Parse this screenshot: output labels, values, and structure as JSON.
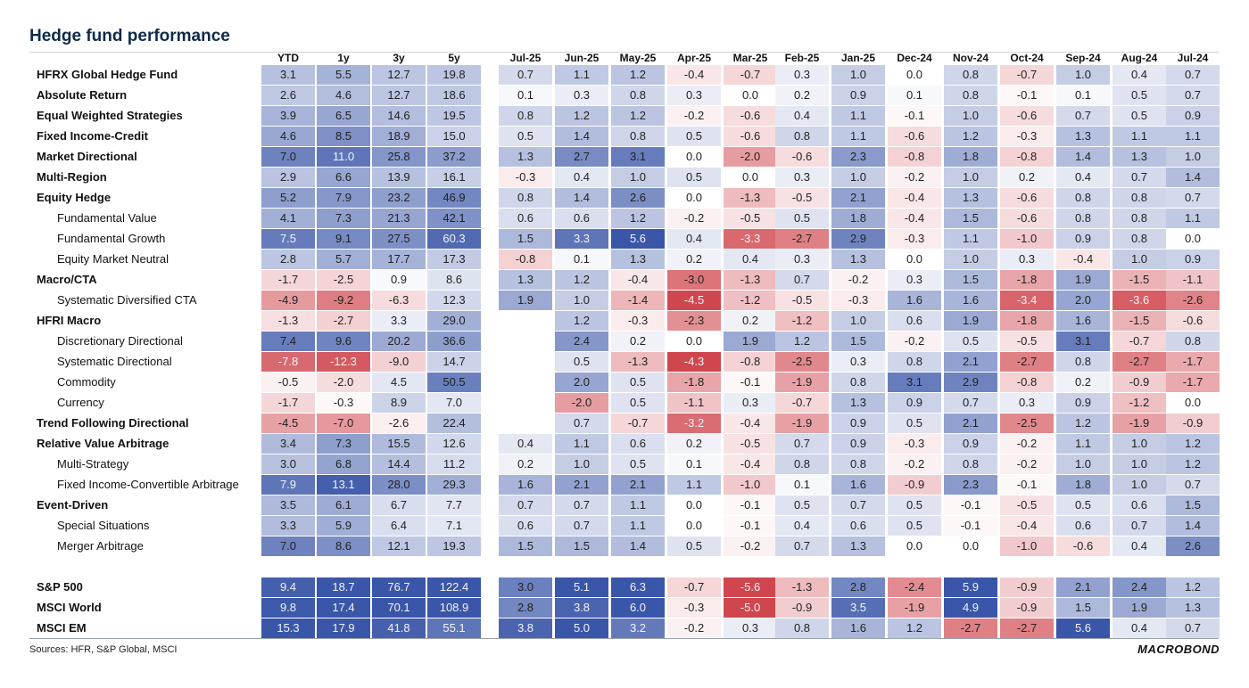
{
  "chart_data": {
    "type": "table",
    "title": "Hedge fund performance",
    "columns": [
      "YTD",
      "1y",
      "3y",
      "5y",
      "Jul-25",
      "Jun-25",
      "May-25",
      "Apr-25",
      "Mar-25",
      "Feb-25",
      "Jan-25",
      "Dec-24",
      "Nov-24",
      "Oct-24",
      "Sep-24",
      "Aug-24",
      "Jul-24"
    ],
    "rows": [
      {
        "label": "HFRX Global Hedge Fund",
        "bold": true,
        "values": [
          3.1,
          5.5,
          12.7,
          19.8,
          0.7,
          1.1,
          1.2,
          -0.4,
          -0.7,
          0.3,
          1.0,
          0.0,
          0.8,
          -0.7,
          1.0,
          0.4,
          0.7
        ]
      },
      {
        "label": "Absolute Return",
        "bold": true,
        "values": [
          2.6,
          4.6,
          12.7,
          18.6,
          0.1,
          0.3,
          0.8,
          0.3,
          0.0,
          0.2,
          0.9,
          0.1,
          0.8,
          -0.1,
          0.1,
          0.5,
          0.7
        ]
      },
      {
        "label": "Equal Weighted Strategies",
        "bold": true,
        "values": [
          3.9,
          6.5,
          14.6,
          19.5,
          0.8,
          1.2,
          1.2,
          -0.2,
          -0.6,
          0.4,
          1.1,
          -0.1,
          1.0,
          -0.6,
          0.7,
          0.5,
          0.9
        ]
      },
      {
        "label": "Fixed Income-Credit",
        "bold": true,
        "values": [
          4.6,
          8.5,
          18.9,
          15.0,
          0.5,
          1.4,
          0.8,
          0.5,
          -0.6,
          0.8,
          1.1,
          -0.6,
          1.2,
          -0.3,
          1.3,
          1.1,
          1.1
        ]
      },
      {
        "label": "Market Directional",
        "bold": true,
        "values": [
          7.0,
          11.0,
          25.8,
          37.2,
          1.3,
          2.7,
          3.1,
          0.0,
          -2.0,
          -0.6,
          2.3,
          -0.8,
          1.8,
          -0.8,
          1.4,
          1.3,
          1.0
        ]
      },
      {
        "label": "Multi-Region",
        "bold": true,
        "values": [
          2.9,
          6.6,
          13.9,
          16.1,
          -0.3,
          0.4,
          1.0,
          0.5,
          0.0,
          0.3,
          1.0,
          -0.2,
          1.0,
          0.2,
          0.4,
          0.7,
          1.4
        ]
      },
      {
        "label": "Equity Hedge",
        "bold": true,
        "values": [
          5.2,
          7.9,
          23.2,
          46.9,
          0.8,
          1.4,
          2.6,
          0.0,
          -1.3,
          -0.5,
          2.1,
          -0.4,
          1.3,
          -0.6,
          0.8,
          0.8,
          0.7
        ]
      },
      {
        "label": "Fundamental Value",
        "bold": false,
        "values": [
          4.1,
          7.3,
          21.3,
          42.1,
          0.6,
          0.6,
          1.2,
          -0.2,
          -0.5,
          0.5,
          1.8,
          -0.4,
          1.5,
          -0.6,
          0.8,
          0.8,
          1.1
        ]
      },
      {
        "label": "Fundamental Growth",
        "bold": false,
        "values": [
          7.5,
          9.1,
          27.5,
          60.3,
          1.5,
          3.3,
          5.6,
          0.4,
          -3.3,
          -2.7,
          2.9,
          -0.3,
          1.1,
          -1.0,
          0.9,
          0.8,
          0.0
        ]
      },
      {
        "label": "Equity Market Neutral",
        "bold": false,
        "values": [
          2.8,
          5.7,
          17.7,
          17.3,
          -0.8,
          0.1,
          1.3,
          0.2,
          0.4,
          0.3,
          1.3,
          0.0,
          1.0,
          0.3,
          -0.4,
          1.0,
          0.9
        ]
      },
      {
        "label": "Macro/CTA",
        "bold": true,
        "values": [
          -1.7,
          -2.5,
          0.9,
          8.6,
          1.3,
          1.2,
          -0.4,
          -3.0,
          -1.3,
          0.7,
          -0.2,
          0.3,
          1.5,
          -1.8,
          1.9,
          -1.5,
          -1.1
        ]
      },
      {
        "label": "Systematic Diversified CTA",
        "bold": false,
        "values": [
          -4.9,
          -9.2,
          -6.3,
          12.3,
          1.9,
          1.0,
          -1.4,
          -4.5,
          -1.2,
          -0.5,
          -0.3,
          1.6,
          1.6,
          -3.4,
          2.0,
          -3.6,
          -2.6
        ]
      },
      {
        "label": "HFRI Macro",
        "bold": true,
        "values": [
          -1.3,
          -2.7,
          3.3,
          29.0,
          null,
          1.2,
          -0.3,
          -2.3,
          0.2,
          -1.2,
          1.0,
          0.6,
          1.9,
          -1.8,
          1.6,
          -1.5,
          -0.6
        ]
      },
      {
        "label": "Discretionary Directional",
        "bold": false,
        "values": [
          7.4,
          9.6,
          20.2,
          36.6,
          null,
          2.4,
          0.2,
          0.0,
          1.9,
          1.2,
          1.5,
          -0.2,
          0.5,
          -0.5,
          3.1,
          -0.7,
          0.8
        ]
      },
      {
        "label": "Systematic Directional",
        "bold": false,
        "values": [
          -7.8,
          -12.3,
          -9.0,
          14.7,
          null,
          0.5,
          -1.3,
          -4.3,
          -0.8,
          -2.5,
          0.3,
          0.8,
          2.1,
          -2.7,
          0.8,
          -2.7,
          -1.7
        ]
      },
      {
        "label": "Commodity",
        "bold": false,
        "values": [
          -0.5,
          -2.0,
          4.5,
          50.5,
          null,
          2.0,
          0.5,
          -1.8,
          -0.1,
          -1.9,
          0.8,
          3.1,
          2.9,
          -0.8,
          0.2,
          -0.9,
          -1.7
        ]
      },
      {
        "label": "Currency",
        "bold": false,
        "values": [
          -1.7,
          -0.3,
          8.9,
          7.0,
          null,
          -2.0,
          0.5,
          -1.1,
          0.3,
          -0.7,
          1.3,
          0.9,
          0.7,
          0.3,
          0.9,
          -1.2,
          0.0
        ]
      },
      {
        "label": "Trend Following Directional",
        "bold": true,
        "values": [
          -4.5,
          -7.0,
          -2.6,
          22.4,
          null,
          0.7,
          -0.7,
          -3.2,
          -0.4,
          -1.9,
          0.9,
          0.5,
          2.1,
          -2.5,
          1.2,
          -1.9,
          -0.9
        ]
      },
      {
        "label": "Relative Value Arbitrage",
        "bold": true,
        "values": [
          3.4,
          7.3,
          15.5,
          12.6,
          0.4,
          1.1,
          0.6,
          0.2,
          -0.5,
          0.7,
          0.9,
          -0.3,
          0.9,
          -0.2,
          1.1,
          1.0,
          1.2
        ]
      },
      {
        "label": "Multi-Strategy",
        "bold": false,
        "values": [
          3.0,
          6.8,
          14.4,
          11.2,
          0.2,
          1.0,
          0.5,
          0.1,
          -0.4,
          0.8,
          0.8,
          -0.2,
          0.8,
          -0.2,
          1.0,
          1.0,
          1.2
        ]
      },
      {
        "label": "Fixed Income-Convertible Arbitrage",
        "bold": false,
        "values": [
          7.9,
          13.1,
          28.0,
          29.3,
          1.6,
          2.1,
          2.1,
          1.1,
          -1.0,
          0.1,
          1.6,
          -0.9,
          2.3,
          -0.1,
          1.8,
          1.0,
          0.7
        ]
      },
      {
        "label": "Event-Driven",
        "bold": true,
        "values": [
          3.5,
          6.1,
          6.7,
          7.7,
          0.7,
          0.7,
          1.1,
          0.0,
          -0.1,
          0.5,
          0.7,
          0.5,
          -0.1,
          -0.5,
          0.5,
          0.6,
          1.5
        ]
      },
      {
        "label": "Special Situations",
        "bold": false,
        "values": [
          3.3,
          5.9,
          6.4,
          7.1,
          0.6,
          0.7,
          1.1,
          0.0,
          -0.1,
          0.4,
          0.6,
          0.5,
          -0.1,
          -0.4,
          0.6,
          0.7,
          1.4
        ]
      },
      {
        "label": "Merger Arbitrage",
        "bold": false,
        "values": [
          7.0,
          8.6,
          12.1,
          19.3,
          1.5,
          1.5,
          1.4,
          0.5,
          -0.2,
          0.7,
          1.3,
          0.0,
          0.0,
          -1.0,
          -0.6,
          0.4,
          2.6
        ]
      }
    ],
    "benchmarks": [
      {
        "label": "S&P 500",
        "bold": true,
        "values": [
          9.4,
          18.7,
          76.7,
          122.4,
          3.0,
          5.1,
          6.3,
          -0.7,
          -5.6,
          -1.3,
          2.8,
          -2.4,
          5.9,
          -0.9,
          2.1,
          2.4,
          1.2
        ]
      },
      {
        "label": "MSCI World",
        "bold": true,
        "values": [
          9.8,
          17.4,
          70.1,
          108.9,
          2.8,
          3.8,
          6.0,
          -0.3,
          -5.0,
          -0.9,
          3.5,
          -1.9,
          4.9,
          -0.9,
          1.5,
          1.9,
          1.3
        ]
      },
      {
        "label": "MSCI EM",
        "bold": true,
        "values": [
          15.3,
          17.9,
          41.8,
          55.1,
          3.8,
          5.0,
          3.2,
          -0.2,
          0.3,
          0.8,
          1.6,
          1.2,
          -2.7,
          -2.7,
          5.6,
          0.4,
          0.7
        ]
      }
    ]
  },
  "footer": {
    "source": "Sources: HFR, S&P Global, MSCI",
    "brand": "MACROBOND"
  },
  "colors": {
    "positive": "#3a56a8",
    "negative": "#d0464e",
    "neutral": "#ffffff"
  }
}
